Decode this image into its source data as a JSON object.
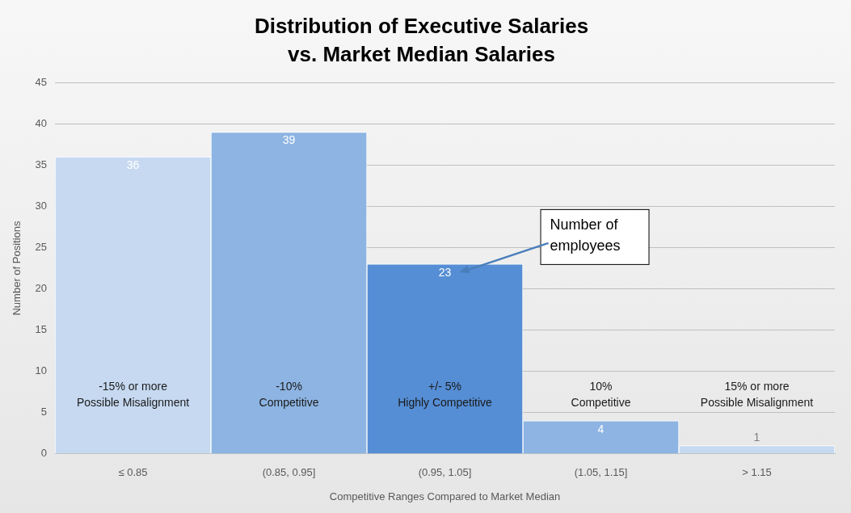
{
  "chart_data": {
    "type": "bar",
    "title": [
      "Distribution of Executive Salaries",
      "vs. Market Median Salaries"
    ],
    "x_label": "Competitive Ranges Compared to Market Median",
    "y_label": "Number of Positions",
    "categories": [
      "≤ 0.85",
      "(0.85, 0.95]",
      "(0.95, 1.05]",
      "(1.05, 1.15]",
      "> 1.15"
    ],
    "values": [
      36,
      39,
      23,
      4,
      1
    ],
    "colors": [
      "#c6d9f1",
      "#8db4e2",
      "#558ed5",
      "#8db4e2",
      "#c6d9f1"
    ],
    "ylim": [
      0,
      45
    ],
    "yticks": [
      0,
      5,
      10,
      15,
      20,
      25,
      30,
      35,
      40,
      45
    ],
    "grid": true,
    "data_labels": true,
    "bar_notes": [
      [
        "-15% or more",
        "Possible Misalignment"
      ],
      [
        "-10%",
        "Competitive"
      ],
      [
        "+/- 5%",
        "Highly Competitive"
      ],
      [
        "10%",
        "Competitive"
      ],
      [
        "15% or more",
        "Possible Misalignment"
      ]
    ],
    "callout": {
      "text": [
        "Number of",
        "employees"
      ],
      "category": "(0.95, 1.05]"
    }
  }
}
